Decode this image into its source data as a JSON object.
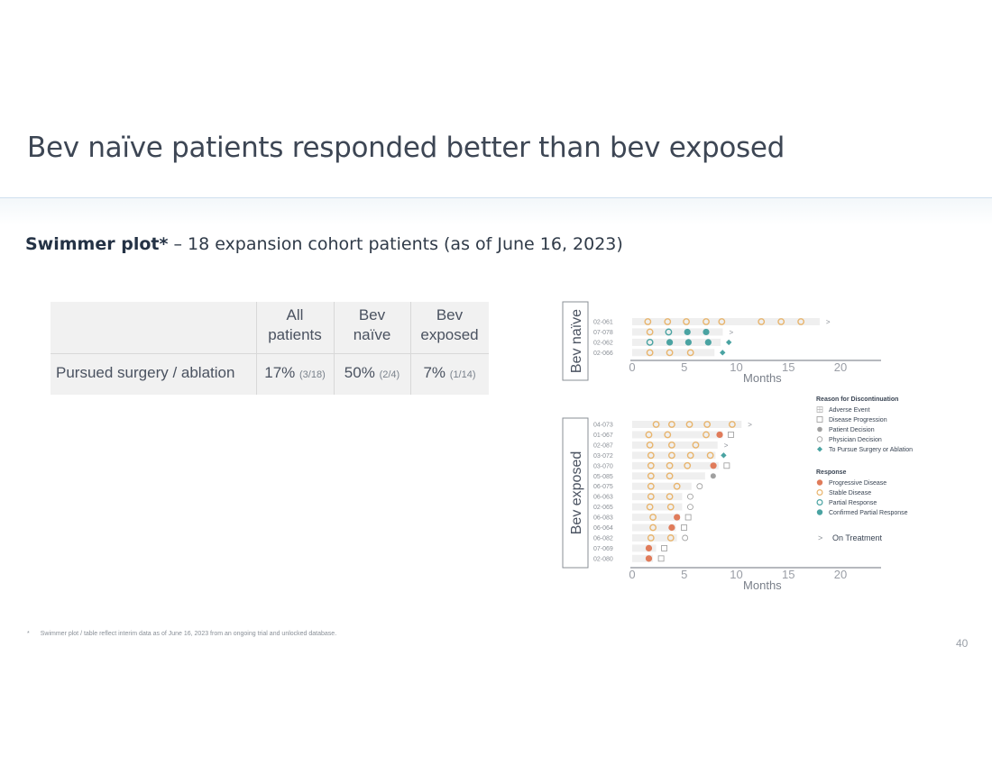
{
  "slide": {
    "title": "Bev naïve patients responded better than bev exposed",
    "subtitle_bold": "Swimmer plot*",
    "subtitle_rest": " – 18 expansion cohort patients (as of June 16, 2023)",
    "footnote_star": "*",
    "footnote": "Swimmer plot / table reflect interim data as of June 16, 2023 from an ongoing trial and unlocked database.",
    "page_number": "40"
  },
  "table": {
    "headers": [
      {
        "line1": "All",
        "line2": "patients"
      },
      {
        "line1": "Bev",
        "line2": "naïve"
      },
      {
        "line1": "Bev",
        "line2": "exposed"
      }
    ],
    "row_label": "Pursued surgery / ablation",
    "cells": [
      {
        "pct": "17%",
        "frac": "(3/18)"
      },
      {
        "pct": "50%",
        "frac": "(2/4)"
      },
      {
        "pct": "7%",
        "frac": "(1/14)"
      }
    ]
  },
  "chart_data": {
    "type": "scatter",
    "subtype": "swimmer",
    "xlabel": "Months",
    "xlim": [
      0,
      24
    ],
    "xticks": [
      0,
      5,
      10,
      15,
      20
    ],
    "colors": {
      "stable": "#e8b46c",
      "progressive": "#e07b5a",
      "partial": "#4aa3a2",
      "confirmed": "#4aa3a2",
      "patient": "#a0a0a0",
      "surgery": "#4aa3a2",
      "bar": "#efefef",
      "axis": "#8a8f96"
    },
    "panels": [
      {
        "label": "Bev naïve",
        "patients": [
          {
            "id": "02-061",
            "duration": 18,
            "end": "on_treatment",
            "events": [
              {
                "t": 1.5,
                "r": "stable"
              },
              {
                "t": 3.4,
                "r": "stable"
              },
              {
                "t": 5.2,
                "r": "stable"
              },
              {
                "t": 7.1,
                "r": "stable"
              },
              {
                "t": 8.6,
                "r": "stable"
              },
              {
                "t": 12.4,
                "r": "stable"
              },
              {
                "t": 14.3,
                "r": "stable"
              },
              {
                "t": 16.2,
                "r": "stable"
              }
            ]
          },
          {
            "id": "07-078",
            "duration": 8.7,
            "end": "on_treatment",
            "events": [
              {
                "t": 1.7,
                "r": "stable"
              },
              {
                "t": 3.5,
                "r": "partial"
              },
              {
                "t": 5.3,
                "r": "confirmed"
              },
              {
                "t": 7.1,
                "r": "confirmed"
              }
            ]
          },
          {
            "id": "02-062",
            "duration": 8.5,
            "end": "surgery",
            "events": [
              {
                "t": 1.7,
                "r": "partial"
              },
              {
                "t": 3.6,
                "r": "confirmed"
              },
              {
                "t": 5.4,
                "r": "confirmed"
              },
              {
                "t": 7.3,
                "r": "confirmed"
              }
            ]
          },
          {
            "id": "02-066",
            "duration": 7.9,
            "end": "surgery",
            "events": [
              {
                "t": 1.7,
                "r": "stable"
              },
              {
                "t": 3.6,
                "r": "stable"
              },
              {
                "t": 5.6,
                "r": "stable"
              }
            ]
          }
        ]
      },
      {
        "label": "Bev exposed",
        "patients": [
          {
            "id": "04-073",
            "duration": 10.5,
            "end": "on_treatment",
            "events": [
              {
                "t": 2.3,
                "r": "stable"
              },
              {
                "t": 3.8,
                "r": "stable"
              },
              {
                "t": 5.5,
                "r": "stable"
              },
              {
                "t": 7.2,
                "r": "stable"
              },
              {
                "t": 9.6,
                "r": "stable"
              }
            ]
          },
          {
            "id": "01-067",
            "duration": 8.7,
            "end": "progression",
            "events": [
              {
                "t": 1.6,
                "r": "stable"
              },
              {
                "t": 3.4,
                "r": "stable"
              },
              {
                "t": 7.1,
                "r": "stable"
              },
              {
                "t": 8.4,
                "r": "progressive"
              }
            ]
          },
          {
            "id": "02-087",
            "duration": 8.2,
            "end": "on_treatment",
            "events": [
              {
                "t": 1.7,
                "r": "stable"
              },
              {
                "t": 3.8,
                "r": "stable"
              },
              {
                "t": 6.1,
                "r": "stable"
              }
            ]
          },
          {
            "id": "03-072",
            "duration": 8.0,
            "end": "surgery",
            "events": [
              {
                "t": 1.8,
                "r": "stable"
              },
              {
                "t": 3.8,
                "r": "stable"
              },
              {
                "t": 5.6,
                "r": "stable"
              },
              {
                "t": 7.5,
                "r": "stable"
              }
            ]
          },
          {
            "id": "03-070",
            "duration": 8.3,
            "end": "progression",
            "events": [
              {
                "t": 1.8,
                "r": "stable"
              },
              {
                "t": 3.6,
                "r": "stable"
              },
              {
                "t": 5.3,
                "r": "stable"
              },
              {
                "t": 7.8,
                "r": "progressive"
              }
            ]
          },
          {
            "id": "05-085",
            "duration": 7.0,
            "end": "patient",
            "events": [
              {
                "t": 1.8,
                "r": "stable"
              },
              {
                "t": 3.6,
                "r": "stable"
              }
            ]
          },
          {
            "id": "06-075",
            "duration": 5.7,
            "end": "physician",
            "events": [
              {
                "t": 1.8,
                "r": "stable"
              },
              {
                "t": 4.3,
                "r": "stable"
              }
            ]
          },
          {
            "id": "06-063",
            "duration": 4.8,
            "end": "physician",
            "events": [
              {
                "t": 1.8,
                "r": "stable"
              },
              {
                "t": 3.6,
                "r": "stable"
              }
            ]
          },
          {
            "id": "02-065",
            "duration": 4.8,
            "end": "physician",
            "events": [
              {
                "t": 1.7,
                "r": "stable"
              },
              {
                "t": 3.7,
                "r": "stable"
              }
            ]
          },
          {
            "id": "06-083",
            "duration": 4.6,
            "end": "progression",
            "events": [
              {
                "t": 2.0,
                "r": "stable"
              },
              {
                "t": 4.3,
                "r": "progressive"
              }
            ]
          },
          {
            "id": "06-064",
            "duration": 4.2,
            "end": "progression",
            "events": [
              {
                "t": 2.0,
                "r": "stable"
              },
              {
                "t": 3.8,
                "r": "progressive"
              }
            ]
          },
          {
            "id": "06-082",
            "duration": 4.3,
            "end": "physician",
            "events": [
              {
                "t": 1.8,
                "r": "stable"
              },
              {
                "t": 3.7,
                "r": "stable"
              }
            ]
          },
          {
            "id": "07-069",
            "duration": 2.3,
            "end": "progression",
            "events": [
              {
                "t": 1.6,
                "r": "progressive"
              }
            ]
          },
          {
            "id": "02-080",
            "duration": 2.0,
            "end": "progression",
            "events": [
              {
                "t": 1.6,
                "r": "progressive"
              }
            ]
          }
        ]
      }
    ],
    "legend": {
      "reason_title": "Reason for Discontinuation",
      "reasons": [
        {
          "key": "adverse",
          "label": "Adverse Event"
        },
        {
          "key": "progression",
          "label": "Disease Progression"
        },
        {
          "key": "patient",
          "label": "Patient Decision"
        },
        {
          "key": "physician",
          "label": "Physician Decision"
        },
        {
          "key": "surgery",
          "label": "To Pursue Surgery or Ablation"
        }
      ],
      "response_title": "Response",
      "responses": [
        {
          "key": "progressive",
          "label": "Progressive Disease"
        },
        {
          "key": "stable",
          "label": "Stable Disease"
        },
        {
          "key": "partial",
          "label": "Partial Response"
        },
        {
          "key": "confirmed",
          "label": "Confirmed Partial Response"
        }
      ],
      "on_treatment_symbol": ">",
      "on_treatment_label": "On Treatment"
    }
  }
}
